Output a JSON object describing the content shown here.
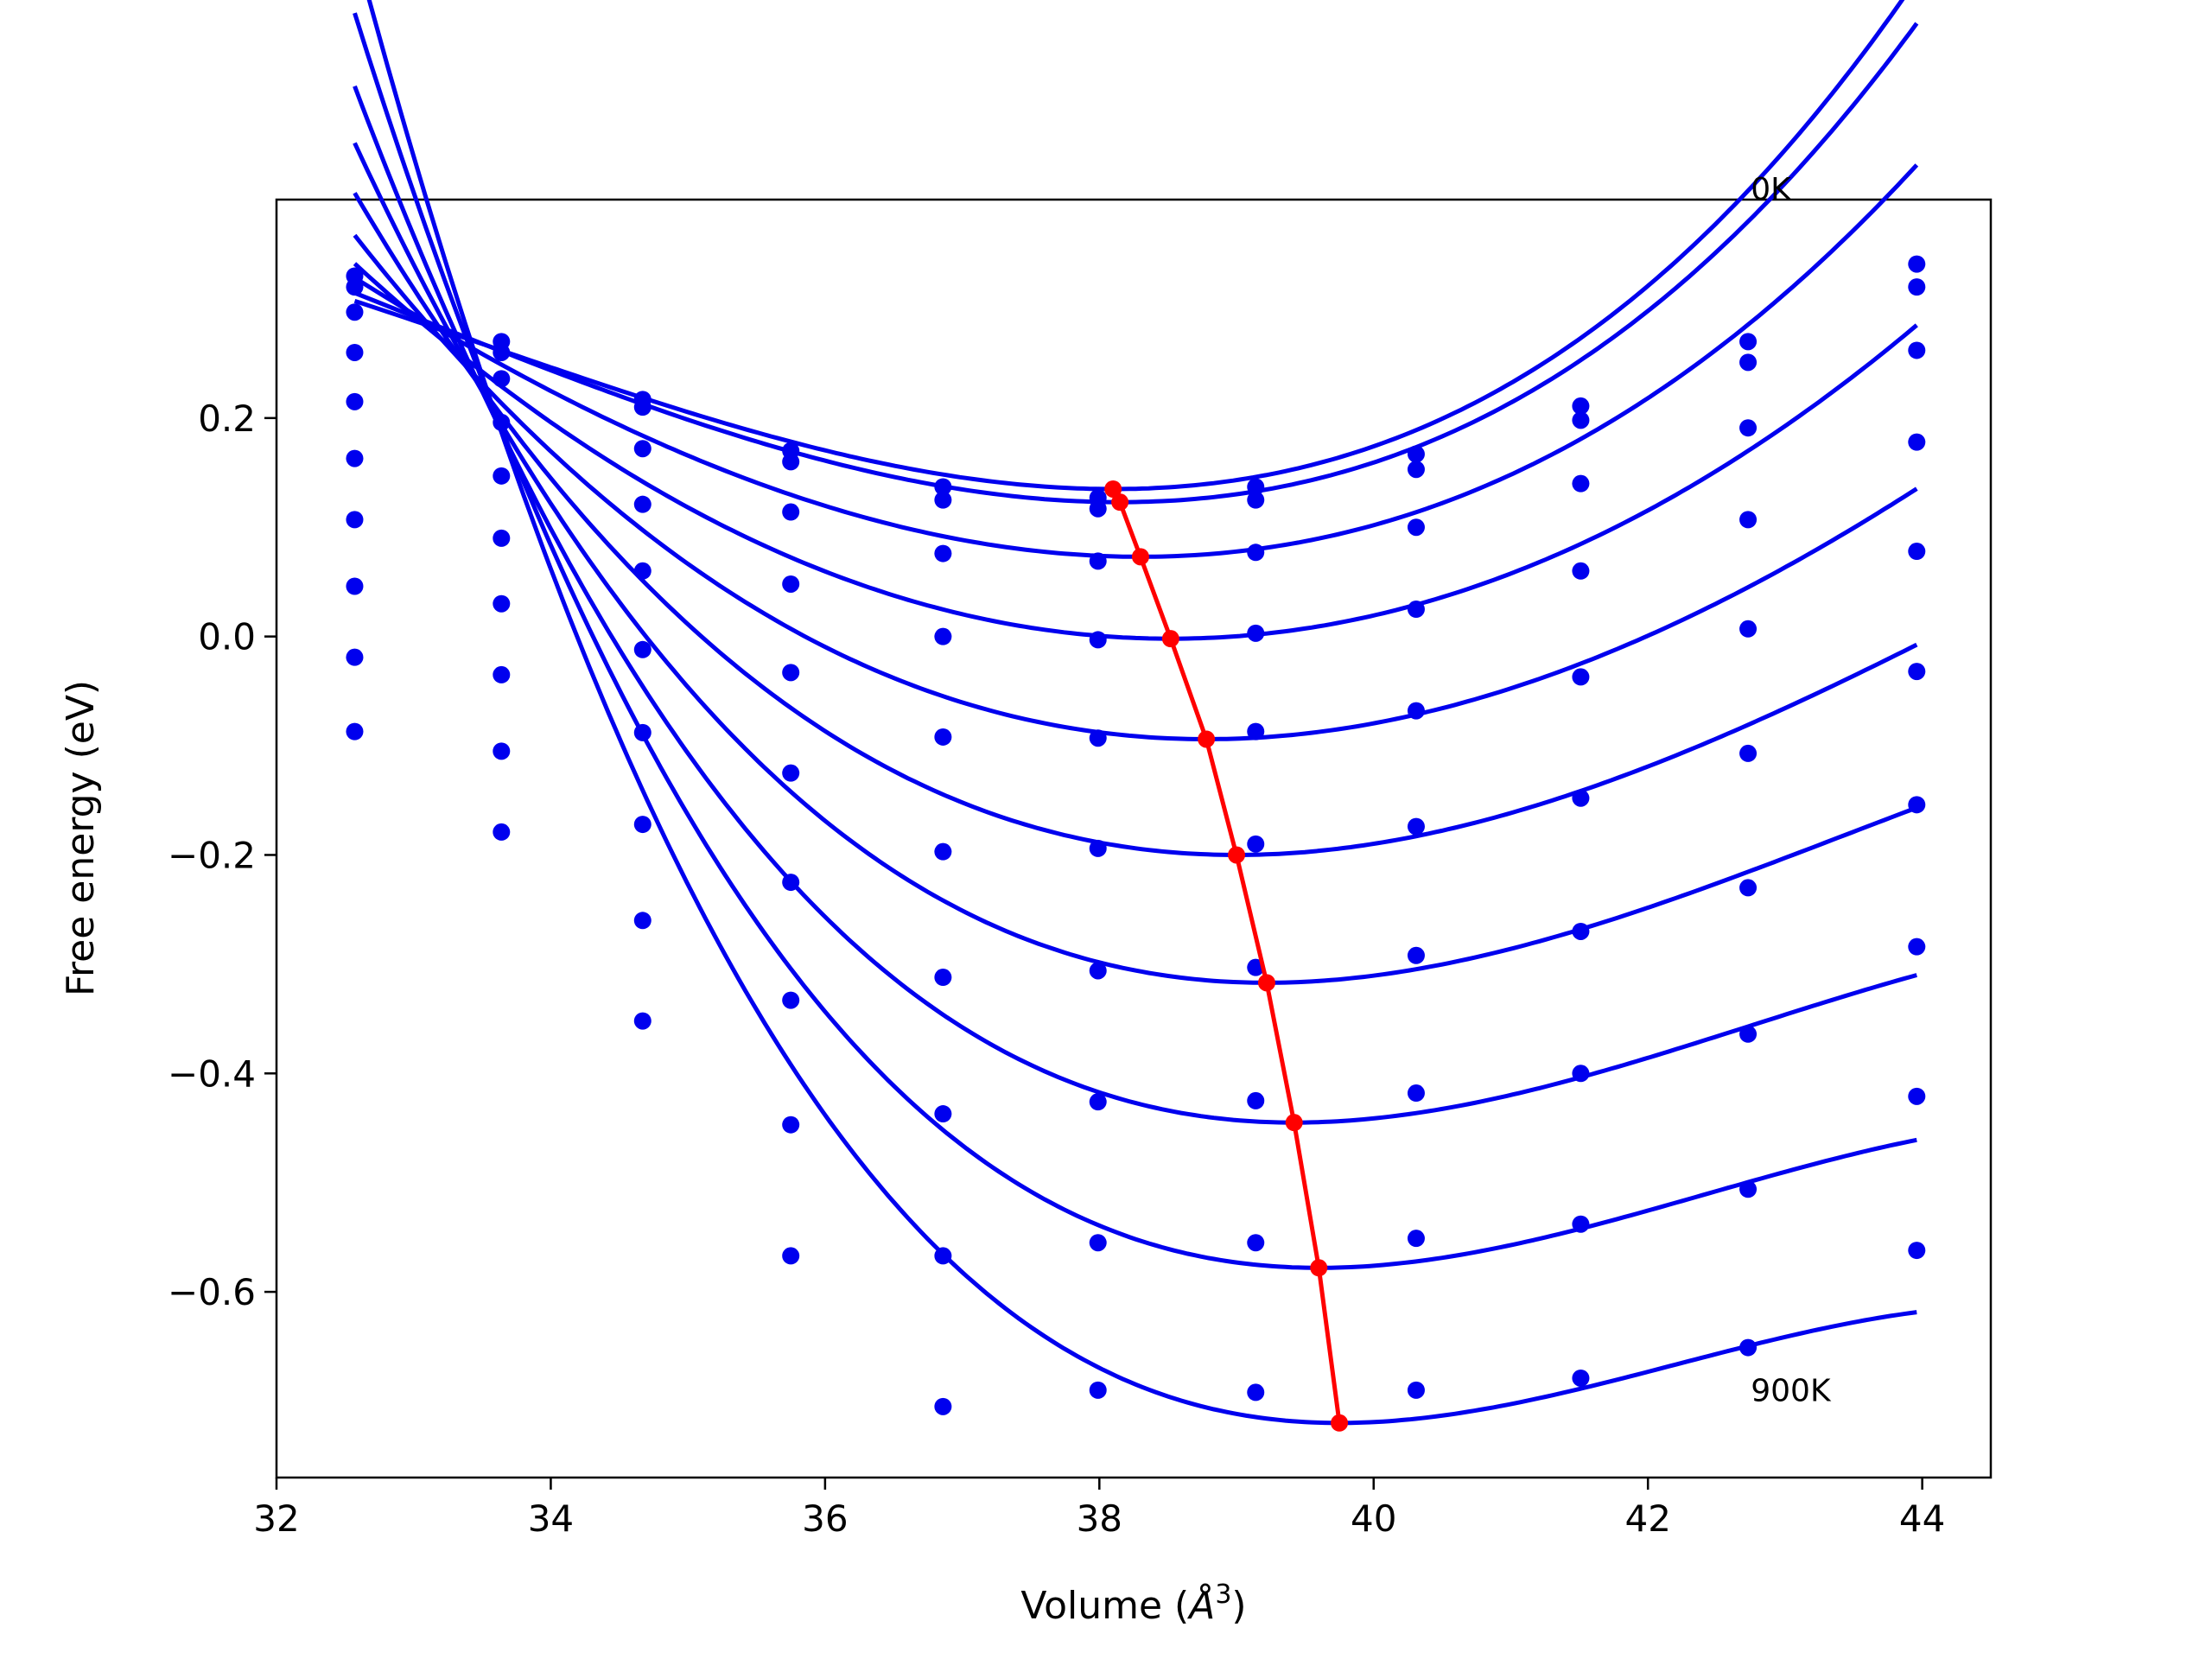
{
  "chart_data": {
    "type": "line",
    "title": "",
    "xlabel": "Volume (Å³)",
    "xlabel_main": "Volume (",
    "xlabel_unit": "Å",
    "xlabel_exp": "3",
    "xlabel_close": ")",
    "ylabel": "Free energy (eV)",
    "xlim": [
      32,
      44.5
    ],
    "ylim": [
      -0.77,
      0.4
    ],
    "xticks": [
      32,
      34,
      36,
      38,
      40,
      42,
      44
    ],
    "xtick_labels": [
      "32",
      "34",
      "36",
      "38",
      "40",
      "42",
      "44"
    ],
    "yticks": [
      -0.6,
      -0.4,
      -0.2,
      0.0,
      0.2
    ],
    "ytick_labels": [
      "−0.6",
      "−0.4",
      "−0.2",
      "0.0",
      "0.2"
    ],
    "grid": false,
    "legend": "none",
    "colors": {
      "curves": "#0000ee",
      "points": "#0000ee",
      "minima": "#ff0000"
    },
    "annotations": [
      {
        "text": "0K",
        "x": 42.75,
        "y": 0.4
      },
      {
        "text": "900K",
        "x": 42.75,
        "y": -0.7
      }
    ],
    "volumes": [
      32.57,
      33.64,
      34.67,
      35.75,
      36.86,
      37.99,
      39.14,
      40.31,
      41.51,
      42.73,
      43.96
    ],
    "series": [
      {
        "fit": {
          "vmin": 38.1,
          "emin": 0.135,
          "c1": 0.0095,
          "c2": 0.0007
        },
        "points": [
          0.33,
          0.27,
          0.217,
          0.17,
          0.137,
          0.127,
          0.137,
          0.167,
          0.211,
          0.27,
          0.341
        ]
      },
      {
        "fit": {
          "vmin": 38.15,
          "emin": 0.123,
          "c1": 0.0095,
          "c2": 0.0006
        },
        "points": [
          0.32,
          0.26,
          0.21,
          0.16,
          0.125,
          0.117,
          0.125,
          0.153,
          0.198,
          0.251,
          0.32
        ]
      },
      {
        "fit": {
          "vmin": 38.3,
          "emin": 0.073,
          "c1": 0.0095,
          "c2": 0.0003
        },
        "points": [
          0.297,
          0.236,
          0.172,
          0.114,
          0.076,
          0.069,
          0.077,
          0.1,
          0.14,
          0.191,
          0.262
        ]
      },
      {
        "fit": {
          "vmin": 38.52,
          "emin": -0.002,
          "c1": 0.0097,
          "c2": 0.0
        },
        "points": [
          0.26,
          0.196,
          0.121,
          0.048,
          0.0,
          -0.003,
          0.003,
          0.025,
          0.06,
          0.107,
          0.178
        ]
      },
      {
        "fit": {
          "vmin": 38.78,
          "emin": -0.094,
          "c1": 0.0101,
          "c2": -0.0003
        },
        "points": [
          0.215,
          0.147,
          0.06,
          -0.033,
          -0.092,
          -0.093,
          -0.087,
          -0.068,
          -0.037,
          0.007,
          0.078
        ]
      },
      {
        "fit": {
          "vmin": 39.0,
          "emin": -0.2,
          "c1": 0.0108,
          "c2": -0.0006
        },
        "points": [
          0.163,
          0.09,
          -0.012,
          -0.125,
          -0.197,
          -0.194,
          -0.19,
          -0.174,
          -0.148,
          -0.107,
          -0.032
        ]
      },
      {
        "fit": {
          "vmin": 39.22,
          "emin": -0.317,
          "c1": 0.0114,
          "c2": -0.0009
        },
        "points": [
          0.107,
          0.03,
          -0.088,
          -0.225,
          -0.312,
          -0.306,
          -0.303,
          -0.292,
          -0.27,
          -0.23,
          -0.154
        ]
      },
      {
        "fit": {
          "vmin": 39.42,
          "emin": -0.445,
          "c1": 0.012,
          "c2": -0.0012
        },
        "points": [
          0.046,
          -0.035,
          -0.172,
          -0.333,
          -0.437,
          -0.426,
          -0.425,
          -0.418,
          -0.4,
          -0.364,
          -0.284
        ]
      },
      {
        "fit": {
          "vmin": 39.6,
          "emin": -0.578,
          "c1": 0.0127,
          "c2": -0.0015
        },
        "points": [
          -0.019,
          -0.105,
          -0.26,
          -0.447,
          -0.567,
          -0.555,
          -0.555,
          -0.551,
          -0.538,
          -0.506,
          -0.421
        ]
      },
      {
        "fit": {
          "vmin": 39.75,
          "emin": -0.72,
          "c1": 0.0133,
          "c2": -0.0018
        },
        "points": [
          -0.087,
          -0.179,
          -0.352,
          -0.567,
          -0.705,
          -0.69,
          -0.692,
          -0.69,
          -0.679,
          -0.651,
          -0.562
        ]
      }
    ],
    "minima_line": {
      "x": [
        38.1,
        38.15,
        38.3,
        38.52,
        38.78,
        39.0,
        39.22,
        39.42,
        39.6,
        39.75
      ],
      "y": [
        0.135,
        0.123,
        0.073,
        -0.002,
        -0.094,
        -0.2,
        -0.317,
        -0.445,
        -0.578,
        -0.72
      ]
    }
  }
}
